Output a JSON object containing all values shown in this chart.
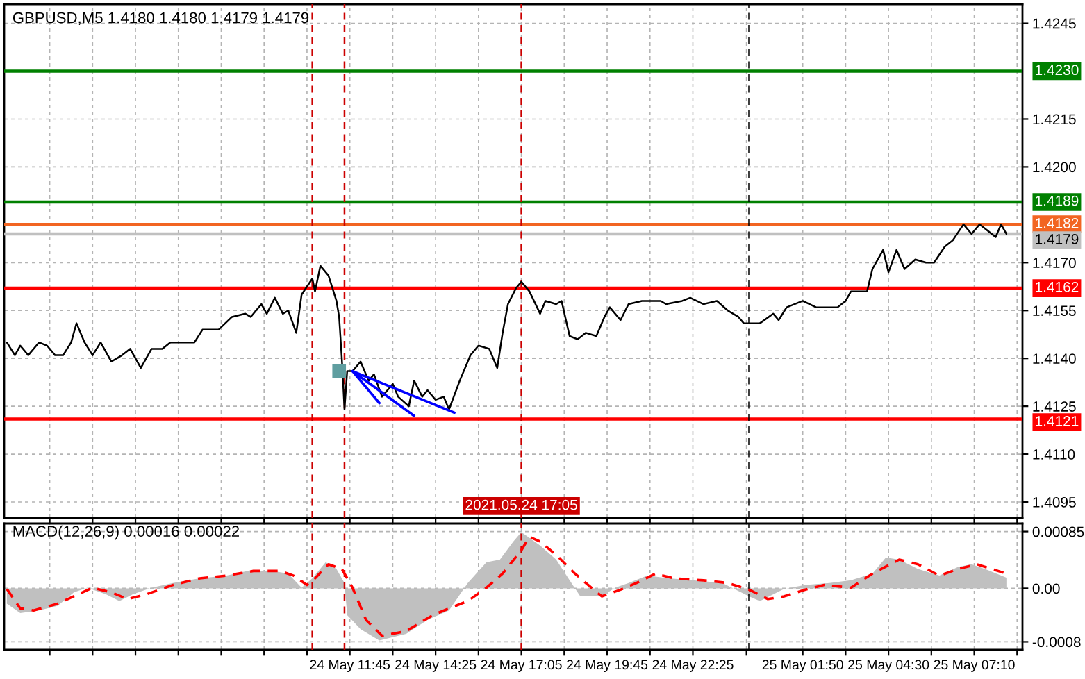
{
  "chart_data": [
    {
      "type": "line",
      "title": "GBPUSD,M5 1.4180 1.4180 1.4179 1.4179",
      "series": [
        {
          "color": "#000000",
          "x": [
            "2021-05-24T01:05",
            "2021-05-24T01:20",
            "2021-05-24T01:30",
            "2021-05-24T01:45",
            "2021-05-24T02:05",
            "2021-05-24T02:20",
            "2021-05-24T02:35",
            "2021-05-24T02:50",
            "2021-05-24T03:05",
            "2021-05-24T03:15",
            "2021-05-24T03:30",
            "2021-05-24T03:45",
            "2021-05-24T04:00",
            "2021-05-24T04:20",
            "2021-05-24T04:40",
            "2021-05-24T04:55",
            "2021-05-24T05:15",
            "2021-05-24T05:35",
            "2021-05-24T05:55",
            "2021-05-24T06:10",
            "2021-05-24T06:30",
            "2021-05-24T06:55",
            "2021-05-24T07:10",
            "2021-05-24T07:40",
            "2021-05-24T08:05",
            "2021-05-24T08:30",
            "2021-05-24T08:40",
            "2021-05-24T09:00",
            "2021-05-24T09:10",
            "2021-05-24T09:25",
            "2021-05-24T09:40",
            "2021-05-24T09:50",
            "2021-05-24T10:05",
            "2021-05-24T10:15",
            "2021-05-24T10:35",
            "2021-05-24T10:40",
            "2021-05-24T10:50",
            "2021-05-24T11:05",
            "2021-05-24T11:20",
            "2021-05-24T11:25",
            "2021-05-24T11:30",
            "2021-05-24T11:35",
            "2021-05-24T11:40",
            "2021-05-24T11:50",
            "2021-05-24T12:05",
            "2021-05-24T12:20",
            "2021-05-24T12:30",
            "2021-05-24T12:45",
            "2021-05-24T13:05",
            "2021-05-24T13:15",
            "2021-05-24T13:35",
            "2021-05-24T13:45",
            "2021-05-24T14:00",
            "2021-05-24T14:10",
            "2021-05-24T14:25",
            "2021-05-24T14:40",
            "2021-05-24T14:50",
            "2021-05-24T15:10",
            "2021-05-24T15:30",
            "2021-05-24T15:45",
            "2021-05-24T16:05",
            "2021-05-24T16:20",
            "2021-05-24T16:30",
            "2021-05-24T16:40",
            "2021-05-24T16:55",
            "2021-05-24T17:05",
            "2021-05-24T17:20",
            "2021-05-24T17:40",
            "2021-05-24T17:50",
            "2021-05-24T18:10",
            "2021-05-24T18:20",
            "2021-05-24T18:35",
            "2021-05-24T18:50",
            "2021-05-24T19:05",
            "2021-05-24T19:25",
            "2021-05-24T19:40",
            "2021-05-24T19:50",
            "2021-05-24T20:10",
            "2021-05-24T20:25",
            "2021-05-24T20:50",
            "2021-05-24T21:25",
            "2021-05-24T21:35",
            "2021-05-24T22:05",
            "2021-05-24T22:20",
            "2021-05-24T22:45",
            "2021-05-24T23:10",
            "2021-05-24T23:30",
            "2021-05-24T23:50",
            "2021-05-25T00:00",
            "2021-05-25T00:10",
            "2021-05-25T00:30",
            "2021-05-25T00:55",
            "2021-05-25T01:05",
            "2021-05-25T01:20",
            "2021-05-25T01:50",
            "2021-05-25T02:15",
            "2021-05-25T02:40",
            "2021-05-25T02:55",
            "2021-05-25T03:10",
            "2021-05-25T03:20",
            "2021-05-25T03:35",
            "2021-05-25T03:50",
            "2021-05-25T04:00",
            "2021-05-25T04:20",
            "2021-05-25T04:30",
            "2021-05-25T04:45",
            "2021-05-25T05:00",
            "2021-05-25T05:20",
            "2021-05-25T05:40",
            "2021-05-25T05:55",
            "2021-05-25T06:15",
            "2021-05-25T06:30",
            "2021-05-25T06:50",
            "2021-05-25T07:05",
            "2021-05-25T07:20",
            "2021-05-25T07:35",
            "2021-05-25T07:50",
            "2021-05-25T08:00",
            "2021-05-25T08:10"
          ],
          "values": [
            1.4145,
            1.4141,
            1.4144,
            1.4141,
            1.4145,
            1.4144,
            1.4141,
            1.4141,
            1.4145,
            1.4151,
            1.4145,
            1.4141,
            1.4145,
            1.4139,
            1.4141,
            1.4143,
            1.4137,
            1.4143,
            1.4143,
            1.4145,
            1.4145,
            1.4145,
            1.4149,
            1.4149,
            1.4153,
            1.4154,
            1.4153,
            1.4157,
            1.4154,
            1.4159,
            1.4154,
            1.4155,
            1.4148,
            1.416,
            1.4165,
            1.4161,
            1.4169,
            1.4166,
            1.4158,
            1.4153,
            1.414,
            1.4124,
            1.4136,
            1.4136,
            1.4139,
            1.4133,
            1.4135,
            1.4128,
            1.4132,
            1.4128,
            1.4125,
            1.4133,
            1.4128,
            1.413,
            1.4127,
            1.4128,
            1.4124,
            1.4133,
            1.4141,
            1.4144,
            1.4143,
            1.4137,
            1.4148,
            1.4157,
            1.4162,
            1.4164,
            1.4161,
            1.4154,
            1.4158,
            1.4157,
            1.4158,
            1.4147,
            1.4146,
            1.4148,
            1.4147,
            1.4153,
            1.4156,
            1.4152,
            1.4157,
            1.4158,
            1.4158,
            1.4157,
            1.4158,
            1.4159,
            1.4157,
            1.4158,
            1.4155,
            1.4153,
            1.4151,
            1.4151,
            1.4151,
            1.4154,
            1.4152,
            1.4156,
            1.4158,
            1.4156,
            1.4156,
            1.4156,
            1.4158,
            1.4161,
            1.4161,
            1.4161,
            1.4168,
            1.4174,
            1.4167,
            1.4174,
            1.4168,
            1.4171,
            1.417,
            1.417,
            1.4175,
            1.4177,
            1.4182,
            1.4179,
            1.4182,
            1.418,
            1.4178,
            1.4182,
            1.4179
          ]
        },
        {
          "type": "line",
          "color": "#0000ff",
          "x": [
            "2021-05-24T11:50",
            "2021-05-24T12:40"
          ],
          "values": [
            1.4136,
            1.4126
          ]
        },
        {
          "type": "line",
          "color": "#0000ff",
          "x": [
            "2021-05-24T11:50",
            "2021-05-24T13:45"
          ],
          "values": [
            1.4136,
            1.4122
          ]
        },
        {
          "type": "line",
          "color": "#0000ff",
          "x": [
            "2021-05-24T11:50",
            "2021-05-24T15:00"
          ],
          "values": [
            1.4136,
            1.4123
          ]
        },
        {
          "type": "scatter",
          "marker": "square",
          "color": "#5f9ea0",
          "x": [
            "2021-05-24T11:25"
          ],
          "values": [
            1.4136
          ]
        }
      ],
      "xlim": [
        "2021-05-24T01:00",
        "2021-05-25T08:40"
      ],
      "xticks": [
        {
          "value": "2021-05-24T02:25",
          "label": null
        },
        {
          "value": "2021-05-24T03:45",
          "label": null
        },
        {
          "value": "2021-05-24T05:05",
          "label": null
        },
        {
          "value": "2021-05-24T06:25",
          "label": null
        },
        {
          "value": "2021-05-24T07:45",
          "label": null
        },
        {
          "value": "2021-05-24T09:05",
          "label": null
        },
        {
          "value": "2021-05-24T10:25",
          "label": null
        },
        {
          "value": "2021-05-24T11:45",
          "label": null
        },
        {
          "value": "2021-05-24T13:05",
          "label": null
        },
        {
          "value": "2021-05-24T14:25",
          "label": null
        },
        {
          "value": "2021-05-24T15:45",
          "label": null
        },
        {
          "value": "2021-05-24T17:05",
          "label": null
        },
        {
          "value": "2021-05-24T18:25",
          "label": null
        },
        {
          "value": "2021-05-24T19:45",
          "label": null
        },
        {
          "value": "2021-05-24T21:05",
          "label": null
        },
        {
          "value": "2021-05-24T22:25",
          "label": null
        },
        {
          "value": "2021-05-25T00:05",
          "label": null
        },
        {
          "value": "2021-05-25T01:50",
          "label": null
        },
        {
          "value": "2021-05-25T03:10",
          "label": null
        },
        {
          "value": "2021-05-25T04:30",
          "label": null
        },
        {
          "value": "2021-05-25T05:50",
          "label": null
        },
        {
          "value": "2021-05-25T07:10",
          "label": null
        },
        {
          "value": "2021-05-25T08:30",
          "label": null
        }
      ],
      "ylim": [
        1.409,
        1.4251
      ],
      "yticks": [
        {
          "value": 1.4095,
          "label": "1.4095"
        },
        {
          "value": 1.411,
          "label": "1.4110"
        },
        {
          "value": 1.4125,
          "label": "1.4125"
        },
        {
          "value": 1.414,
          "label": "1.4140"
        },
        {
          "value": 1.4155,
          "label": "1.4155"
        },
        {
          "value": 1.417,
          "label": "1.4170"
        },
        {
          "value": 1.42,
          "label": "1.4200"
        },
        {
          "value": 1.4215,
          "label": "1.4215"
        },
        {
          "value": 1.4245,
          "label": "1.4245"
        }
      ],
      "tick_labels": "y",
      "grid": true,
      "ref_lines": [
        {
          "axis": "y",
          "value": 1.423,
          "label": "1.4230",
          "color": "#008000"
        },
        {
          "axis": "y",
          "value": 1.4189,
          "label": "1.4189",
          "color": "#008000"
        },
        {
          "axis": "y",
          "value": 1.4182,
          "label": "1.4182",
          "color": "#f26522"
        },
        {
          "axis": "y",
          "value": 1.4179,
          "label": "1.4179",
          "color": "#c0c0c0"
        },
        {
          "axis": "y",
          "value": 1.4162,
          "label": "1.4162",
          "color": "#ff0000"
        },
        {
          "axis": "y",
          "value": 1.4121,
          "label": "1.4121",
          "color": "#ff0000"
        },
        {
          "axis": "x",
          "value": "2021-05-24T10:35",
          "color": "#cc0000",
          "line_style": "dashed"
        },
        {
          "axis": "x",
          "value": "2021-05-24T11:35",
          "color": "#cc0000",
          "line_style": "dashed"
        },
        {
          "axis": "x",
          "value": "2021-05-24T17:05",
          "label": "2021.05.24 17:05",
          "color": "#cc0000",
          "line_style": "dashed"
        },
        {
          "axis": "x",
          "value": "2021-05-25T00:10",
          "color": "#000000",
          "line_style": "dashed"
        }
      ]
    },
    {
      "type": "area",
      "title": "MACD(12,26,9) 0.00016 0.00022",
      "series": [
        {
          "color": "#c0c0c0",
          "x": [
            "2021-05-24T01:05",
            "2021-05-24T01:30",
            "2021-05-24T02:05",
            "2021-05-24T02:40",
            "2021-05-24T03:10",
            "2021-05-24T03:35",
            "2021-05-24T04:10",
            "2021-05-24T04:35",
            "2021-05-24T05:00",
            "2021-05-24T05:35",
            "2021-05-24T06:15",
            "2021-05-24T07:05",
            "2021-05-24T07:55",
            "2021-05-24T08:35",
            "2021-05-24T09:20",
            "2021-05-24T09:50",
            "2021-05-24T10:15",
            "2021-05-24T10:35",
            "2021-05-24T11:00",
            "2021-05-24T11:20",
            "2021-05-24T11:35",
            "2021-05-24T11:40",
            "2021-05-24T12:05",
            "2021-05-24T12:40",
            "2021-05-24T13:30",
            "2021-05-24T14:10",
            "2021-05-24T14:50",
            "2021-05-24T15:25",
            "2021-05-24T16:00",
            "2021-05-24T16:25",
            "2021-05-24T16:50",
            "2021-05-24T17:05",
            "2021-05-24T17:40",
            "2021-05-24T18:10",
            "2021-05-24T18:35",
            "2021-05-24T18:55",
            "2021-05-24T19:35",
            "2021-05-24T20:00",
            "2021-05-24T20:25",
            "2021-05-24T21:00",
            "2021-05-24T21:40",
            "2021-05-24T22:25",
            "2021-05-24T23:20",
            "2021-05-25T00:10",
            "2021-05-25T00:30",
            "2021-05-25T01:15",
            "2021-05-25T01:55",
            "2021-05-25T02:40",
            "2021-05-25T03:20",
            "2021-05-25T04:00",
            "2021-05-25T04:25",
            "2021-05-25T04:50",
            "2021-05-25T05:25",
            "2021-05-25T06:05",
            "2021-05-25T06:40",
            "2021-05-25T07:05",
            "2021-05-25T07:30",
            "2021-05-25T08:10"
          ],
          "values": [
            -0.00023,
            -0.00037,
            -0.00033,
            -0.00026,
            -6e-05,
            1e-05,
            -9e-05,
            -0.00019,
            -9e-05,
            1e-05,
            8e-05,
            0.00015,
            0.00019,
            0.00026,
            0.00026,
            0.00022,
            1e-05,
            0.00015,
            0.00039,
            0.00029,
            8e-05,
            -0.0004,
            -0.00061,
            -0.00078,
            -0.00068,
            -0.00047,
            -0.00033,
            8e-05,
            0.00039,
            0.00043,
            0.0007,
            0.00084,
            0.00064,
            0.00043,
            0.00012,
            -0.00012,
            -0.00012,
            1e-05,
            8e-05,
            0.00019,
            0.00015,
            0.00012,
            8e-05,
            -0.00012,
            -0.00019,
            -1e-05,
            5e-05,
            8e-05,
            0.00012,
            0.00022,
            0.00046,
            0.00043,
            0.00029,
            0.00019,
            0.00032,
            0.00036,
            0.00029,
            0.00016
          ]
        },
        {
          "type": "line",
          "color": "#ff0000",
          "line_style": "dashed",
          "x": [
            "2021-05-24T01:05",
            "2021-05-24T01:30",
            "2021-05-24T01:55",
            "2021-05-24T02:40",
            "2021-05-24T03:10",
            "2021-05-24T03:45",
            "2021-05-24T04:20",
            "2021-05-24T04:50",
            "2021-05-24T05:25",
            "2021-05-24T06:15",
            "2021-05-24T07:05",
            "2021-05-24T07:55",
            "2021-05-24T08:45",
            "2021-05-24T09:35",
            "2021-05-24T10:00",
            "2021-05-24T10:25",
            "2021-05-24T10:40",
            "2021-05-24T11:05",
            "2021-05-24T11:30",
            "2021-05-24T11:50",
            "2021-05-24T12:15",
            "2021-05-24T12:45",
            "2021-05-24T13:30",
            "2021-05-24T14:20",
            "2021-05-24T14:50",
            "2021-05-24T15:25",
            "2021-05-24T16:00",
            "2021-05-24T16:30",
            "2021-05-24T17:05",
            "2021-05-24T17:20",
            "2021-05-24T17:40",
            "2021-05-24T18:10",
            "2021-05-24T18:45",
            "2021-05-24T19:20",
            "2021-05-24T19:35",
            "2021-05-24T20:10",
            "2021-05-24T20:40",
            "2021-05-24T21:15",
            "2021-05-24T21:50",
            "2021-05-24T22:45",
            "2021-05-24T23:30",
            "2021-05-25T00:10",
            "2021-05-25T00:45",
            "2021-05-25T01:15",
            "2021-05-25T01:55",
            "2021-05-25T02:30",
            "2021-05-25T03:20",
            "2021-05-25T04:00",
            "2021-05-25T04:50",
            "2021-05-25T05:25",
            "2021-05-25T06:05",
            "2021-05-25T06:40",
            "2021-05-25T07:15",
            "2021-05-25T08:10"
          ],
          "values": [
            -1e-05,
            -0.0003,
            -0.00033,
            -0.00023,
            -0.00012,
            1e-05,
            -6e-05,
            -0.00016,
            -9e-05,
            5e-05,
            0.00015,
            0.00019,
            0.00026,
            0.00026,
            0.00019,
            5e-05,
            0.00015,
            0.00036,
            0.00029,
            1e-05,
            -0.00047,
            -0.00071,
            -0.00064,
            -0.0004,
            -0.0003,
            -0.00019,
            1e-05,
            0.00022,
            0.00057,
            0.00077,
            0.0007,
            0.0005,
            0.00022,
            -2e-05,
            -0.00012,
            -2e-05,
            8e-05,
            0.00022,
            0.00015,
            0.00012,
            8e-05,
            -2e-05,
            -0.00016,
            -0.00012,
            -2e-05,
            5e-05,
            1e-05,
            0.00022,
            0.00043,
            0.00036,
            0.00019,
            0.00029,
            0.00036,
            0.00022
          ]
        }
      ],
      "xlim": [
        "2021-05-24T01:00",
        "2021-05-25T08:40"
      ],
      "xticks": [
        {
          "value": "2021-05-24T02:25",
          "label": null
        },
        {
          "value": "2021-05-24T03:45",
          "label": null
        },
        {
          "value": "2021-05-24T05:05",
          "label": null
        },
        {
          "value": "2021-05-24T06:25",
          "label": null
        },
        {
          "value": "2021-05-24T07:45",
          "label": null
        },
        {
          "value": "2021-05-24T09:05",
          "label": null
        },
        {
          "value": "2021-05-24T10:25",
          "label": null
        },
        {
          "value": "2021-05-24T11:45",
          "label": "24 May 11:45"
        },
        {
          "value": "2021-05-24T13:05",
          "label": null
        },
        {
          "value": "2021-05-24T14:25",
          "label": "24 May 14:25"
        },
        {
          "value": "2021-05-24T15:45",
          "label": null
        },
        {
          "value": "2021-05-24T17:05",
          "label": "24 May 17:05"
        },
        {
          "value": "2021-05-24T18:25",
          "label": null
        },
        {
          "value": "2021-05-24T19:45",
          "label": "24 May 19:45"
        },
        {
          "value": "2021-05-24T21:05",
          "label": null
        },
        {
          "value": "2021-05-24T22:25",
          "label": "24 May 22:25"
        },
        {
          "value": "2021-05-25T00:05",
          "label": null
        },
        {
          "value": "2021-05-25T01:50",
          "label": "25 May 01:50"
        },
        {
          "value": "2021-05-25T03:10",
          "label": null
        },
        {
          "value": "2021-05-25T04:30",
          "label": "25 May 04:30"
        },
        {
          "value": "2021-05-25T05:50",
          "label": null
        },
        {
          "value": "2021-05-25T07:10",
          "label": "25 May 07:10"
        },
        {
          "value": "2021-05-25T08:30",
          "label": null
        }
      ],
      "ylim": [
        -0.00092,
        0.00097
      ],
      "yticks": [
        {
          "value": -0.0008,
          "label": "-0.0008"
        },
        {
          "value": 0,
          "label": "0.00"
        },
        {
          "value": 0.00085,
          "label": "0.00085"
        }
      ],
      "grid": true,
      "ref_lines": [
        {
          "axis": "x",
          "value": "2021-05-24T10:35",
          "color": "#cc0000",
          "line_style": "dashed"
        },
        {
          "axis": "x",
          "value": "2021-05-24T11:35",
          "color": "#cc0000",
          "line_style": "dashed"
        },
        {
          "axis": "x",
          "value": "2021-05-24T17:05",
          "color": "#cc0000",
          "line_style": "dashed"
        },
        {
          "axis": "x",
          "value": "2021-05-25T00:10",
          "color": "#000000",
          "line_style": "dashed"
        }
      ]
    }
  ]
}
